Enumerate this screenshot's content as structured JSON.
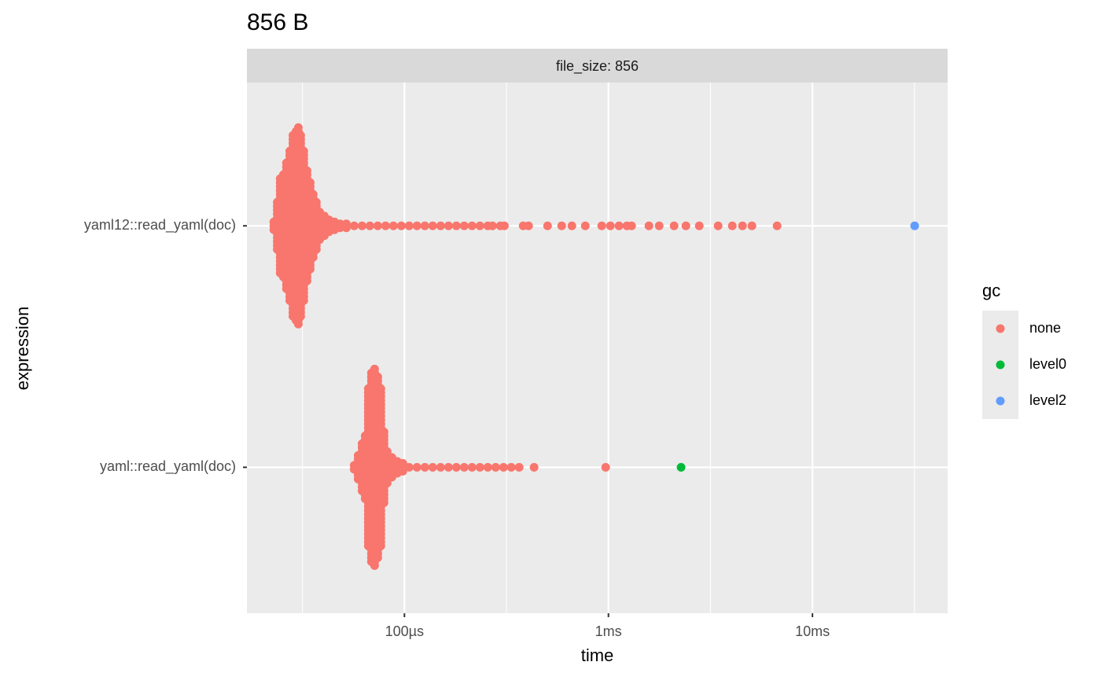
{
  "chart_data": {
    "type": "beeswarm",
    "title": "856 B",
    "strip": "file_size: 856",
    "x_label": "time",
    "y_label": "expression",
    "legend_title": "gc",
    "log_x": true,
    "grid": true,
    "legend_position": "right",
    "categories": [
      "yaml12::read_yaml(doc)",
      "yaml::read_yaml(doc)"
    ],
    "xlim": [
      1.69e-05,
      0.046
    ],
    "xticks": [
      {
        "value": 0.0001,
        "label": "100µs"
      },
      {
        "value": 0.001,
        "label": "1ms"
      },
      {
        "value": 0.01,
        "label": "10ms"
      }
    ],
    "xminorticks": [
      3.162e-05,
      0.0003162,
      0.003162,
      0.03162
    ],
    "series": [
      {
        "name": "none",
        "color": "#F8766D",
        "x": [
          [
            2.29e-05,
            2.38e-05,
            2.46e-05,
            2.55e-05,
            2.64e-05,
            2.74e-05,
            2.84e-05,
            2.94e-05,
            3.02e-05,
            3.1e-05,
            3.21e-05,
            3.33e-05,
            3.45e-05,
            3.57e-05,
            3.7e-05,
            3.84e-05,
            4.05e-05,
            4.27e-05,
            4.54e-05,
            4.83e-05,
            5.19e-05,
            5.67e-05,
            6.2e-05,
            6.77e-05,
            7.4e-05,
            8.08e-05,
            8.83e-05,
            9.65e-05,
            0.0001055,
            0.0001152,
            0.0001259,
            0.0001376,
            0.0001504,
            0.0001644,
            0.0001796,
            0.0001963,
            0.0002145,
            0.0002344,
            0.0002562,
            0.00027,
            0.000295,
            0.000309,
            0.000382,
            0.000406,
            0.000503,
            0.00059,
            0.000662,
            0.00077,
            0.000927,
            0.001022,
            0.001127,
            0.001232,
            0.001299,
            0.001579,
            0.001773,
            0.002098,
            0.002397,
            0.002787,
            0.003448,
            0.004046,
            0.004539,
            0.00505,
            0.00671
          ],
          [
            5.67e-05,
            5.93e-05,
            6.2e-05,
            6.42e-05,
            6.65e-05,
            6.89e-05,
            7.14e-05,
            7.4e-05,
            7.66e-05,
            7.94e-05,
            8.23e-05,
            8.68e-05,
            9.23e-05,
            9.82e-05,
            0.0001055,
            0.0001152,
            0.0001259,
            0.0001376,
            0.0001504,
            0.0001644,
            0.0001796,
            0.0001963,
            0.0002145,
            0.0002344,
            0.0002562,
            0.00028,
            0.000306,
            0.000334,
            0.000365,
            0.000432,
            0.000969
          ]
        ],
        "counts": [
          [
            3,
            13,
            25,
            27,
            33,
            39,
            47,
            49,
            51,
            47,
            39,
            29,
            23,
            17,
            13,
            8,
            6,
            4,
            3,
            2,
            2,
            1,
            1,
            1,
            1,
            1,
            1,
            1,
            1,
            1,
            1,
            1,
            1,
            1,
            1,
            1,
            1,
            1,
            1,
            1,
            1,
            1,
            1,
            1,
            1,
            1,
            1,
            1,
            1,
            1,
            1,
            1,
            1,
            1,
            1,
            1,
            1,
            1,
            1,
            1,
            1,
            1,
            1
          ],
          [
            2,
            7,
            13,
            17,
            41,
            49,
            51,
            47,
            41,
            19,
            9,
            6,
            4,
            3,
            1,
            1,
            1,
            1,
            1,
            1,
            1,
            1,
            1,
            1,
            1,
            1,
            1,
            1,
            1,
            1,
            1
          ]
        ]
      },
      {
        "name": "level0",
        "color": "#00BA38",
        "x": [
          [],
          [
            0.00227
          ]
        ],
        "counts": [
          [],
          [
            1
          ]
        ]
      },
      {
        "name": "level2",
        "color": "#619CFF",
        "x": [
          [
            0.0317
          ],
          []
        ],
        "counts": [
          [
            1
          ],
          []
        ]
      }
    ]
  }
}
